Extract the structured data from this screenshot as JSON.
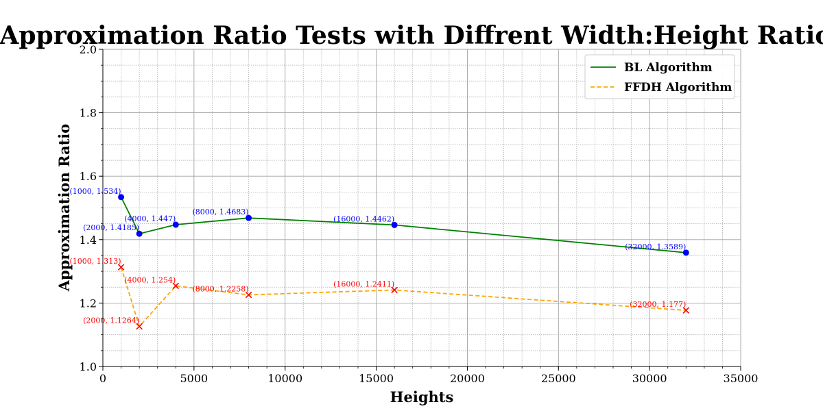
{
  "chart_data": {
    "type": "line",
    "title": "Approximation Ratio Tests with Diffrent Width:Height Ratios",
    "xlabel": "Heights",
    "ylabel": "Approximation Ratio",
    "xlim": [
      0,
      35000
    ],
    "ylim": [
      1.0,
      2.0
    ],
    "x_ticks": [
      0,
      5000,
      10000,
      15000,
      20000,
      25000,
      30000,
      35000
    ],
    "y_ticks": [
      1.0,
      1.2,
      1.4,
      1.6,
      1.8,
      2.0
    ],
    "y_tick_labels": [
      "1.0",
      "1.2",
      "1.4",
      "1.6",
      "1.8",
      "2.0"
    ],
    "grid": true,
    "legend_position": "top-right",
    "series": [
      {
        "name": "BL Algorithm",
        "line_color": "#008000",
        "line_style": "solid",
        "marker": "circle",
        "marker_color": "#0000ff",
        "label_color": "#0000ff",
        "x": [
          1000,
          2000,
          4000,
          8000,
          16000,
          32000
        ],
        "y": [
          1.534,
          1.4185,
          1.447,
          1.4683,
          1.4462,
          1.3589
        ],
        "point_labels": [
          "(1000, 1.534)",
          "(2000, 1.4185)",
          "(4000, 1.447)",
          "(8000, 1.4683)",
          "(16000, 1.4462)",
          "(32000, 1.3589)"
        ]
      },
      {
        "name": "FFDH Algorithm",
        "line_color": "#ffa500",
        "line_style": "dashed",
        "marker": "x",
        "marker_color": "#ff0000",
        "label_color": "#ff0000",
        "x": [
          1000,
          2000,
          4000,
          8000,
          16000,
          32000
        ],
        "y": [
          1.313,
          1.1264,
          1.254,
          1.2258,
          1.2411,
          1.177
        ],
        "point_labels": [
          "(1000, 1.313)",
          "(2000, 1.1264)",
          "(4000, 1.254)",
          "(8000, 1.2258)",
          "(16000, 1.2411)",
          "(32000, 1.177)"
        ]
      }
    ]
  }
}
